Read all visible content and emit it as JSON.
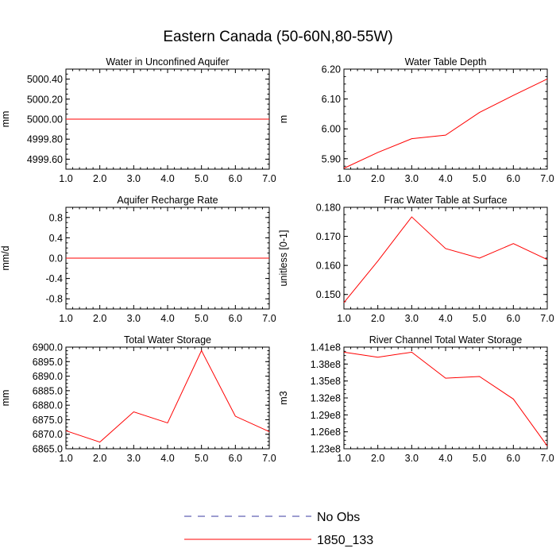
{
  "title": "Eastern Canada (50-60N,80-55W)",
  "colors": {
    "model": "#ff0000",
    "obs": "#3a3aa0",
    "axis": "#000000"
  },
  "legend": [
    {
      "label": "No Obs",
      "style": "dashed",
      "color": "#3a3aa0"
    },
    {
      "label": "1850_133",
      "style": "solid",
      "color": "#ff0000"
    }
  ],
  "chart_data": [
    {
      "type": "line",
      "title": "Water in Unconfined Aquifer",
      "ylabel": "mm",
      "x": [
        1,
        2,
        3,
        4,
        5,
        6,
        7
      ],
      "xticks": [
        "1.0",
        "2.0",
        "3.0",
        "4.0",
        "5.0",
        "6.0",
        "7.0"
      ],
      "xlim": [
        1,
        7
      ],
      "ylim": [
        4999.5,
        5000.5
      ],
      "yticks": [
        4999.6,
        4999.8,
        5000.0,
        5000.2,
        5000.4
      ],
      "ytick_labels": [
        "4999.60",
        "4999.80",
        "5000.00",
        "5000.20",
        "5000.40"
      ],
      "series": [
        {
          "name": "1850_133",
          "values": [
            5000,
            5000,
            5000,
            5000,
            5000,
            5000,
            5000
          ]
        }
      ]
    },
    {
      "type": "line",
      "title": "Water Table Depth",
      "ylabel": "m",
      "x": [
        1,
        2,
        3,
        4,
        5,
        6,
        7
      ],
      "xticks": [
        "1.0",
        "2.0",
        "3.0",
        "4.0",
        "5.0",
        "6.0",
        "7.0"
      ],
      "xlim": [
        1,
        7
      ],
      "ylim": [
        5.865,
        6.2
      ],
      "yticks": [
        5.9,
        6.0,
        6.1,
        6.2
      ],
      "ytick_labels": [
        "5.90",
        "6.00",
        "6.10",
        "6.20"
      ],
      "series": [
        {
          "name": "1850_133",
          "values": [
            5.868,
            5.921,
            5.967,
            5.979,
            6.055,
            6.112,
            6.167
          ]
        }
      ]
    },
    {
      "type": "line",
      "title": "Aquifer Recharge Rate",
      "ylabel": "mm/d",
      "x": [
        1,
        2,
        3,
        4,
        5,
        6,
        7
      ],
      "xticks": [
        "1.0",
        "2.0",
        "3.0",
        "4.0",
        "5.0",
        "6.0",
        "7.0"
      ],
      "xlim": [
        1,
        7
      ],
      "ylim": [
        -1,
        1
      ],
      "yticks": [
        -0.8,
        -0.4,
        0.0,
        0.4,
        0.8
      ],
      "ytick_labels": [
        "-0.8",
        "-0.4",
        "0.0",
        "0.4",
        "0.8"
      ],
      "series": [
        {
          "name": "1850_133",
          "values": [
            0,
            0,
            0,
            0,
            0,
            0,
            0
          ]
        }
      ]
    },
    {
      "type": "line",
      "title": "Frac Water Table at Surface",
      "ylabel": "unitless [0-1]",
      "x": [
        1,
        2,
        3,
        4,
        5,
        6,
        7
      ],
      "xticks": [
        "1.0",
        "2.0",
        "3.0",
        "4.0",
        "5.0",
        "6.0",
        "7.0"
      ],
      "xlim": [
        1,
        7
      ],
      "ylim": [
        0.145,
        0.18
      ],
      "yticks": [
        0.15,
        0.16,
        0.17,
        0.18
      ],
      "ytick_labels": [
        "0.150",
        "0.160",
        "0.170",
        "0.180"
      ],
      "series": [
        {
          "name": "1850_133",
          "values": [
            0.1472,
            0.1615,
            0.1767,
            0.1658,
            0.1625,
            0.1675,
            0.162
          ]
        }
      ]
    },
    {
      "type": "line",
      "title": "Total Water Storage",
      "ylabel": "mm",
      "x": [
        1,
        2,
        3,
        4,
        5,
        6,
        7
      ],
      "xticks": [
        "1.0",
        "2.0",
        "3.0",
        "4.0",
        "5.0",
        "6.0",
        "7.0"
      ],
      "xlim": [
        1,
        7
      ],
      "ylim": [
        6865,
        6900
      ],
      "yticks": [
        6865,
        6870,
        6875,
        6880,
        6885,
        6890,
        6895,
        6900
      ],
      "ytick_labels": [
        "6865.0",
        "6870.0",
        "6875.0",
        "6880.0",
        "6885.0",
        "6890.0",
        "6895.0",
        "6900.0"
      ],
      "series": [
        {
          "name": "1850_133",
          "values": [
            6871.2,
            6867.3,
            6877.7,
            6873.9,
            6898.8,
            6876.2,
            6870.9
          ]
        }
      ]
    },
    {
      "type": "line",
      "title": "River Channel Total Water Storage",
      "ylabel": "m3",
      "x": [
        1,
        2,
        3,
        4,
        5,
        6,
        7
      ],
      "xticks": [
        "1.0",
        "2.0",
        "3.0",
        "4.0",
        "5.0",
        "6.0",
        "7.0"
      ],
      "xlim": [
        1,
        7
      ],
      "ylim": [
        123000000.0,
        141000000.0
      ],
      "yticks": [
        123000000.0,
        126000000.0,
        129000000.0,
        132000000.0,
        135000000.0,
        138000000.0,
        141000000.0
      ],
      "ytick_labels": [
        "1.23e8",
        "1.26e8",
        "1.29e8",
        "1.32e8",
        "1.35e8",
        "1.38e8",
        "1.41e8"
      ],
      "series": [
        {
          "name": "1850_133",
          "values": [
            140100000.0,
            139200000.0,
            140100000.0,
            135500000.0,
            135800000.0,
            131800000.0,
            123500000.0
          ]
        }
      ]
    }
  ]
}
